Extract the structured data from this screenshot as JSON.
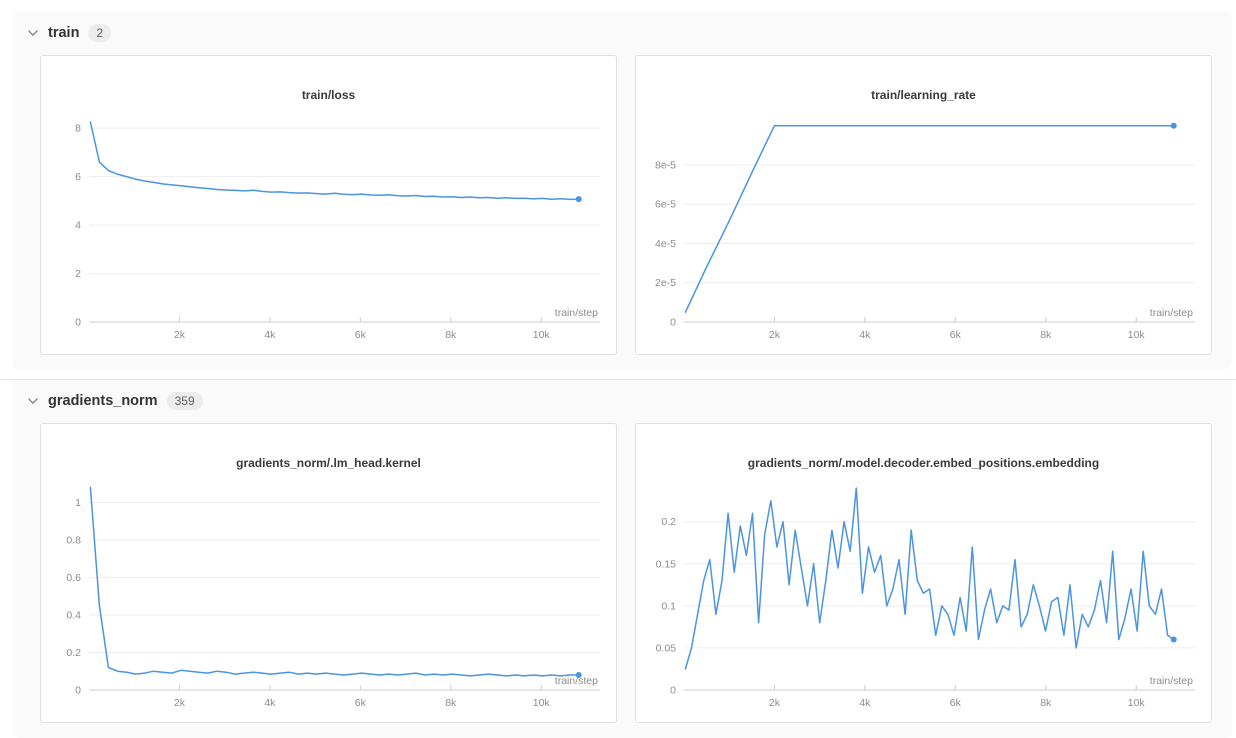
{
  "page": {
    "background": "#ffffff",
    "section_background": "#fafafa",
    "card_background": "#ffffff",
    "card_border": "#e0e0e0",
    "grid_color": "#ededed",
    "axis_color": "#cccccc",
    "tick_text_color": "#8c8c8c",
    "line_color": "#4a94e2"
  },
  "sections": [
    {
      "label": "train",
      "count": "2",
      "chevron": "chevron-down-icon"
    },
    {
      "label": "gradients_norm",
      "count": "359",
      "chevron": "chevron-down-icon"
    }
  ],
  "chart_data": [
    {
      "type": "line",
      "title": "train/loss",
      "xlabel": "train/step",
      "ylabel": "",
      "xlim": [
        0,
        11300
      ],
      "ylim": [
        0,
        8.75
      ],
      "xticks": [
        2000,
        4000,
        6000,
        8000,
        10000
      ],
      "xtick_labels": [
        "2k",
        "4k",
        "6k",
        "8k",
        "10k"
      ],
      "yticks": [
        0,
        2,
        4,
        6,
        8
      ],
      "ytick_labels": [
        "0",
        "2",
        "4",
        "6",
        "8"
      ],
      "grid": true,
      "legend": "none",
      "end_dot": true,
      "x": [
        30,
        230,
        430,
        630,
        830,
        1030,
        1230,
        1430,
        1630,
        1830,
        2030,
        2230,
        2430,
        2630,
        2830,
        3030,
        3230,
        3430,
        3630,
        3830,
        4030,
        4230,
        4430,
        4630,
        4830,
        5030,
        5230,
        5430,
        5630,
        5830,
        6030,
        6230,
        6430,
        6630,
        6830,
        7030,
        7230,
        7430,
        7630,
        7830,
        8030,
        8230,
        8430,
        8630,
        8830,
        9030,
        9230,
        9430,
        9630,
        9830,
        10030,
        10230,
        10430,
        10630,
        10830
      ],
      "y": [
        8.25,
        6.6,
        6.25,
        6.1,
        6.0,
        5.9,
        5.82,
        5.76,
        5.7,
        5.66,
        5.62,
        5.58,
        5.54,
        5.51,
        5.47,
        5.45,
        5.43,
        5.41,
        5.44,
        5.39,
        5.36,
        5.37,
        5.34,
        5.32,
        5.33,
        5.3,
        5.28,
        5.31,
        5.27,
        5.26,
        5.28,
        5.24,
        5.23,
        5.25,
        5.21,
        5.2,
        5.22,
        5.18,
        5.19,
        5.16,
        5.17,
        5.14,
        5.16,
        5.13,
        5.14,
        5.11,
        5.13,
        5.1,
        5.11,
        5.08,
        5.1,
        5.07,
        5.09,
        5.06,
        5.07
      ]
    },
    {
      "type": "line",
      "title": "train/learning_rate",
      "xlabel": "train/step",
      "ylabel": "",
      "xlim": [
        0,
        11300
      ],
      "ylim": [
        0,
        0.000108
      ],
      "xticks": [
        2000,
        4000,
        6000,
        8000,
        10000
      ],
      "xtick_labels": [
        "2k",
        "4k",
        "6k",
        "8k",
        "10k"
      ],
      "yticks": [
        0,
        2e-05,
        4e-05,
        6e-05,
        8e-05
      ],
      "ytick_labels": [
        "0",
        "2e-5",
        "4e-5",
        "6e-5",
        "8e-5"
      ],
      "grid": true,
      "legend": "none",
      "end_dot": true,
      "x": [
        30,
        500,
        1000,
        1500,
        2000,
        4000,
        6000,
        8000,
        10830
      ],
      "y": [
        5e-06,
        2.8e-05,
        5.15e-05,
        7.6e-05,
        0.0001,
        0.0001,
        0.0001,
        0.0001,
        0.0001
      ]
    },
    {
      "type": "line",
      "title": "gradients_norm/.lm_head.kernel",
      "xlabel": "train/step",
      "ylabel": "",
      "xlim": [
        0,
        11300
      ],
      "ylim": [
        0,
        1.13
      ],
      "xticks": [
        2000,
        4000,
        6000,
        8000,
        10000
      ],
      "xtick_labels": [
        "2k",
        "4k",
        "6k",
        "8k",
        "10k"
      ],
      "yticks": [
        0,
        0.2,
        0.4,
        0.6,
        0.8,
        1
      ],
      "ytick_labels": [
        "0",
        "0.2",
        "0.4",
        "0.6",
        "0.8",
        "1"
      ],
      "grid": true,
      "legend": "none",
      "end_dot": true,
      "x": [
        30,
        230,
        430,
        630,
        830,
        1030,
        1230,
        1430,
        1630,
        1830,
        2030,
        2230,
        2430,
        2630,
        2830,
        3030,
        3230,
        3430,
        3630,
        3830,
        4030,
        4230,
        4430,
        4630,
        4830,
        5030,
        5230,
        5430,
        5630,
        5830,
        6030,
        6230,
        6430,
        6630,
        6830,
        7030,
        7230,
        7430,
        7630,
        7830,
        8030,
        8230,
        8430,
        8630,
        8830,
        9030,
        9230,
        9430,
        9630,
        9830,
        10030,
        10230,
        10430,
        10630,
        10830
      ],
      "y": [
        1.08,
        0.45,
        0.12,
        0.1,
        0.095,
        0.085,
        0.09,
        0.1,
        0.095,
        0.09,
        0.105,
        0.1,
        0.095,
        0.09,
        0.1,
        0.095,
        0.085,
        0.09,
        0.095,
        0.09,
        0.085,
        0.09,
        0.095,
        0.085,
        0.09,
        0.085,
        0.09,
        0.085,
        0.08,
        0.085,
        0.09,
        0.085,
        0.08,
        0.085,
        0.08,
        0.085,
        0.09,
        0.08,
        0.085,
        0.08,
        0.085,
        0.08,
        0.075,
        0.08,
        0.085,
        0.08,
        0.075,
        0.08,
        0.075,
        0.08,
        0.075,
        0.08,
        0.075,
        0.08,
        0.08
      ]
    },
    {
      "type": "line",
      "title": "gradients_norm/.model.decoder.embed_positions.embedding",
      "xlabel": "train/step",
      "ylabel": "",
      "xlim": [
        0,
        11300
      ],
      "ylim": [
        0,
        0.252
      ],
      "xticks": [
        2000,
        4000,
        6000,
        8000,
        10000
      ],
      "xtick_labels": [
        "2k",
        "4k",
        "6k",
        "8k",
        "10k"
      ],
      "yticks": [
        0,
        0.05,
        0.1,
        0.15,
        0.2
      ],
      "ytick_labels": [
        "0",
        "0.05",
        "0.1",
        "0.15",
        "0.2"
      ],
      "grid": true,
      "legend": "none",
      "end_dot": true,
      "x": [
        30,
        165,
        300,
        435,
        570,
        705,
        840,
        975,
        1110,
        1245,
        1380,
        1515,
        1650,
        1785,
        1920,
        2055,
        2190,
        2325,
        2460,
        2595,
        2730,
        2865,
        3000,
        3135,
        3270,
        3405,
        3540,
        3675,
        3810,
        3945,
        4080,
        4215,
        4350,
        4485,
        4620,
        4755,
        4890,
        5025,
        5160,
        5295,
        5430,
        5565,
        5700,
        5835,
        5970,
        6105,
        6240,
        6375,
        6510,
        6645,
        6780,
        6915,
        7050,
        7185,
        7320,
        7455,
        7590,
        7725,
        7860,
        7995,
        8130,
        8265,
        8400,
        8535,
        8670,
        8805,
        8940,
        9075,
        9210,
        9345,
        9480,
        9615,
        9750,
        9885,
        10020,
        10155,
        10290,
        10425,
        10560,
        10695,
        10830
      ],
      "y": [
        0.025,
        0.05,
        0.09,
        0.13,
        0.155,
        0.09,
        0.13,
        0.21,
        0.14,
        0.195,
        0.16,
        0.21,
        0.08,
        0.185,
        0.225,
        0.17,
        0.2,
        0.125,
        0.19,
        0.145,
        0.1,
        0.15,
        0.08,
        0.13,
        0.19,
        0.145,
        0.2,
        0.165,
        0.24,
        0.115,
        0.17,
        0.14,
        0.16,
        0.1,
        0.12,
        0.155,
        0.09,
        0.19,
        0.13,
        0.115,
        0.12,
        0.065,
        0.1,
        0.09,
        0.065,
        0.11,
        0.07,
        0.17,
        0.06,
        0.095,
        0.12,
        0.08,
        0.1,
        0.095,
        0.155,
        0.075,
        0.09,
        0.125,
        0.1,
        0.07,
        0.105,
        0.11,
        0.065,
        0.125,
        0.05,
        0.09,
        0.075,
        0.095,
        0.13,
        0.08,
        0.165,
        0.06,
        0.085,
        0.12,
        0.07,
        0.165,
        0.1,
        0.09,
        0.12,
        0.065,
        0.06
      ]
    }
  ]
}
